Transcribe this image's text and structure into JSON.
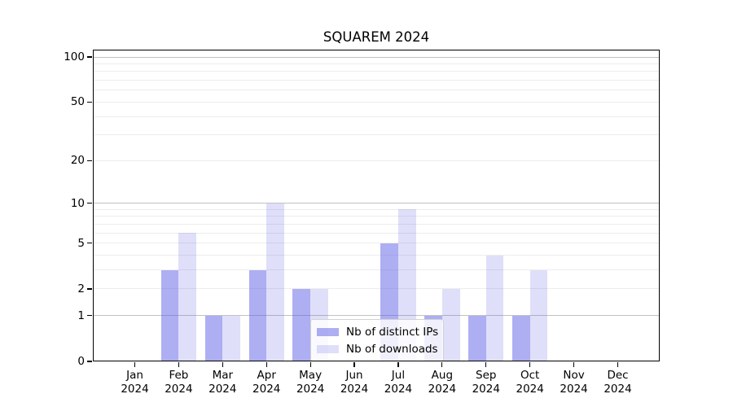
{
  "title": "SQUAREM 2024",
  "axes": {
    "y_tick_labels": [
      "0",
      "1",
      "2",
      "5",
      "10",
      "20",
      "50",
      "100"
    ],
    "x_tick_year": "2024"
  },
  "legend": {
    "items": [
      {
        "label": "Nb of distinct IPs",
        "color": "rgba(85,85,230,0.48)"
      },
      {
        "label": "Nb of downloads",
        "color": "rgba(85,85,230,0.19)"
      }
    ]
  },
  "colors": {
    "bar_distinct_ips_on_white": "#a9a9f4",
    "bar_downloads_on_white": "#dcdcf8",
    "grid_major": "#c2c2c2",
    "grid_minor": "#ececec",
    "axis_frame": "#000000",
    "background": "#ffffff"
  },
  "chart_data": {
    "type": "bar",
    "title": "SQUAREM 2024",
    "categories": [
      "Jan",
      "Feb",
      "Mar",
      "Apr",
      "May",
      "Jun",
      "Jul",
      "Aug",
      "Sep",
      "Oct",
      "Nov",
      "Dec"
    ],
    "category_year": "2024",
    "series": [
      {
        "name": "Nb of distinct IPs",
        "color": "rgba(85,85,230,0.48)",
        "values": [
          0,
          3,
          1,
          3,
          2,
          0,
          5,
          1,
          1,
          1,
          0,
          0
        ]
      },
      {
        "name": "Nb of downloads",
        "color": "rgba(85,85,230,0.19)",
        "values": [
          0,
          6,
          1,
          10,
          2,
          0,
          9,
          2,
          4,
          3,
          0,
          0
        ]
      }
    ],
    "xlabel": "",
    "ylabel": "",
    "yscale": "log1p",
    "ylim": [
      0,
      112
    ],
    "yticks": [
      0,
      1,
      2,
      5,
      10,
      20,
      50,
      100
    ],
    "major_gridlines": [
      1,
      10,
      100
    ],
    "minor_gridlines": [
      2,
      3,
      4,
      5,
      6,
      7,
      8,
      9,
      20,
      30,
      40,
      50,
      60,
      70,
      80,
      90
    ],
    "grid": true,
    "legend_position": "lower center"
  }
}
